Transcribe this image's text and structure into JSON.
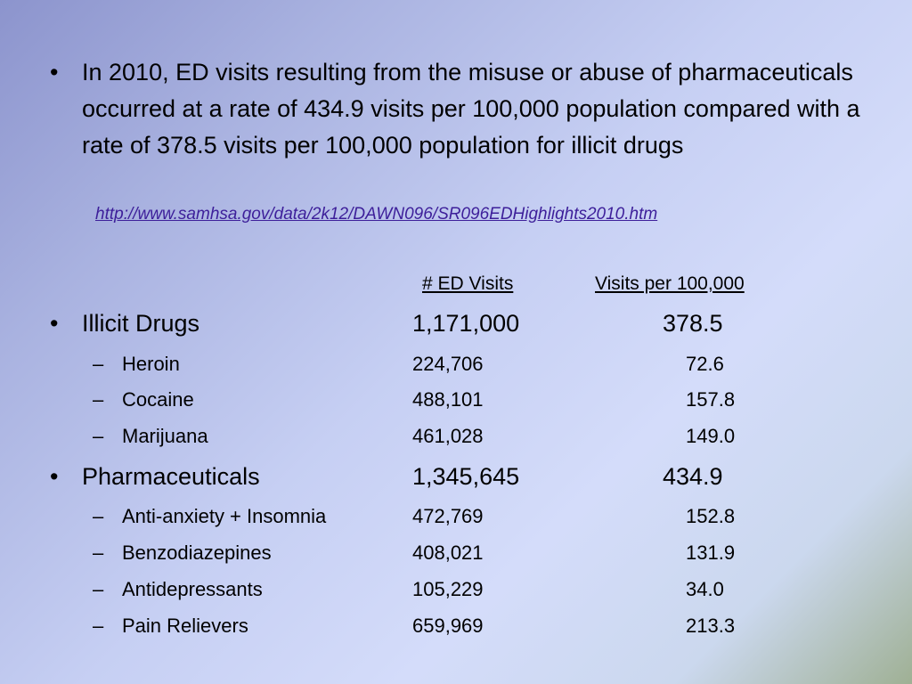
{
  "intro": {
    "bullet": "•",
    "text": "In 2010, ED visits resulting from the misuse or abuse of pharmaceuticals occurred at a rate of 434.9 visits per 100,000 population compared with a rate of 378.5 visits per 100,000 population for illicit drugs",
    "source_url": "http://www.samhsa.gov/data/2k12/DAWN096/SR096EDHighlights2010.htm"
  },
  "table": {
    "col_visits": "# ED Visits",
    "col_rate": "Visits per 100,000",
    "groups": [
      {
        "marker": "•",
        "label": "Illicit Drugs",
        "visits": "1,171,000",
        "rate": "378.5",
        "items": [
          {
            "marker": "–",
            "label": "Heroin",
            "visits": "224,706",
            "rate": "72.6"
          },
          {
            "marker": "–",
            "label": "Cocaine",
            "visits": "488,101",
            "rate": "157.8"
          },
          {
            "marker": "–",
            "label": "Marijuana",
            "visits": "461,028",
            "rate": "149.0"
          }
        ]
      },
      {
        "marker": "•",
        "label": "Pharmaceuticals",
        "visits": "1,345,645",
        "rate": "434.9",
        "items": [
          {
            "marker": "–",
            "label": "Anti-anxiety + Insomnia",
            "visits": "472,769",
            "rate": "152.8"
          },
          {
            "marker": "–",
            "label": "Benzodiazepines",
            "visits": "408,021",
            "rate": "131.9"
          },
          {
            "marker": "–",
            "label": "Antidepressants",
            "visits": "105,229",
            "rate": "34.0"
          },
          {
            "marker": "–",
            "label": "Pain Relievers",
            "visits": "659,969",
            "rate": "213.3"
          }
        ]
      }
    ]
  }
}
